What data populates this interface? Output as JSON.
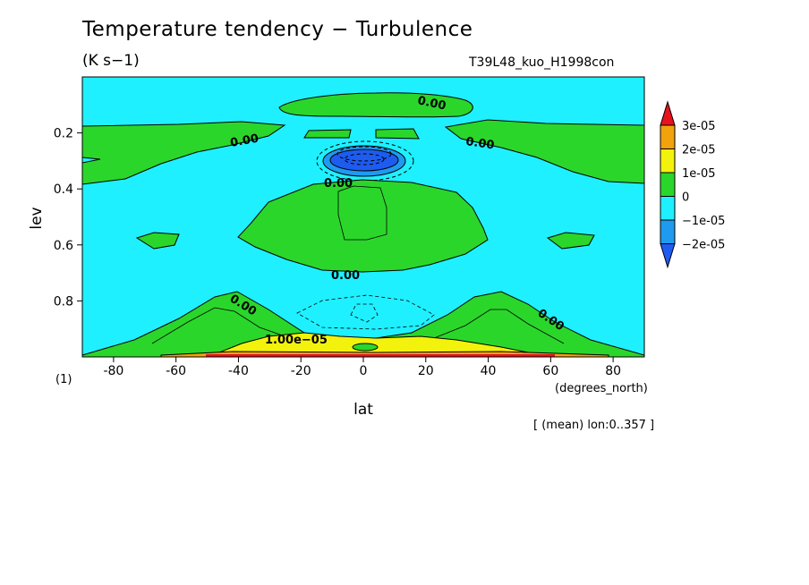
{
  "header": {
    "title": "Temperature tendency − Turbulence",
    "units": "(K s−1)",
    "run_id": "T39L48_kuo_H1998con",
    "mean_note": "[ (mean) lon:0..357 ]"
  },
  "chart_data": {
    "type": "heatmap",
    "subtype": "filled-contour",
    "xlabel": "lat",
    "xunit_label": "(degrees_north)",
    "ylabel": "lev",
    "yunit_label": "(1)",
    "xlim": [
      -90,
      90
    ],
    "ylim": [
      0.0,
      1.0
    ],
    "y_inverted": true,
    "xticks": [
      -80,
      -60,
      -40,
      -20,
      0,
      20,
      40,
      60,
      80
    ],
    "yticks": [
      0.2,
      0.4,
      0.6,
      0.8
    ],
    "ytick_labels": [
      "0.2",
      "0.4",
      "0.6",
      "0.8"
    ],
    "colorbar": {
      "levels": [
        {
          "label": "3e-05",
          "value": 3e-05
        },
        {
          "label": "2e-05",
          "value": 2e-05
        },
        {
          "label": "1e-05",
          "value": 1e-05
        },
        {
          "label": "0",
          "value": 0
        },
        {
          "label": "−1e-05",
          "value": -1e-05
        },
        {
          "label": "−2e-05",
          "value": -2e-05
        }
      ],
      "colors": [
        "#e8121e",
        "#f2a20c",
        "#f2f20c",
        "#2bd62b",
        "#1ef0ff",
        "#1e9bf0",
        "#1e5cf0"
      ]
    },
    "contour_labels": [
      "0.00",
      "0.00",
      "0.00",
      "0.00",
      "0.00",
      "0.00",
      "0.00",
      "1.00e−05"
    ],
    "regions": [
      {
        "name": "upper-green-cap",
        "value": 2e-06,
        "level_band": "0..1e-05"
      },
      {
        "name": "stratosphere-green-band",
        "value": 2e-06,
        "level_band": "0..1e-05"
      },
      {
        "name": "tropical-cold-core",
        "value": -2.5e-05,
        "level_band": "<-2e-05",
        "center": {
          "lat": 0,
          "lev": 0.29
        }
      },
      {
        "name": "midtroposphere-green",
        "value": 3e-06,
        "level_band": "0..1e-05"
      },
      {
        "name": "boundary-layer-green",
        "value": 5e-06,
        "level_band": "0..1e-05"
      },
      {
        "name": "boundary-layer-yellow",
        "value": 1.5e-05,
        "level_band": "1e-05..2e-05"
      },
      {
        "name": "surface-red",
        "value": 3e-05,
        "level_band": ">3e-05"
      },
      {
        "name": "background",
        "value": -3e-06,
        "level_band": "-1e-05..0"
      }
    ]
  }
}
